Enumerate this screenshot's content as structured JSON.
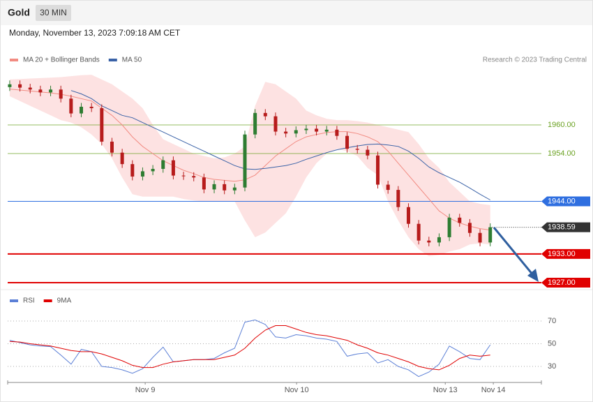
{
  "header": {
    "title": "Gold",
    "interval": "30 MIN",
    "timestamp": "Monday, November 13, 2023 7:09:18 AM CET"
  },
  "chart_data": [
    {
      "type": "candlestick",
      "source": "Research © 2023 Trading Central",
      "xlim": [
        -0.2,
        52
      ],
      "ylim": [
        1926,
        1972
      ],
      "candles": {
        "up_color": "#2e7d32",
        "down_color": "#b71c1c",
        "open": [
          1967.9,
          1968.5,
          1967.8,
          1967.4,
          1966.8,
          1967.4,
          1965.5,
          1962.4,
          1963.8,
          1963.5,
          1956.5,
          1954.2,
          1951.8,
          1949.2,
          1950.3,
          1950.8,
          1952.6,
          1949.4,
          1949.3,
          1949.0,
          1946.5,
          1947.6,
          1946.3,
          1946.9,
          1958.0,
          1962.5,
          1961.8,
          1958.6,
          1958.2,
          1958.9,
          1959.2,
          1958.6,
          1959.0,
          1957.7,
          1955.0,
          1954.8,
          1953.6,
          1947.5,
          1946.4,
          1942.8,
          1939.3,
          1935.8,
          1935.4,
          1936.5,
          1940.6,
          1939.5,
          1937.4,
          1935.4
        ],
        "high": [
          1969.3,
          1969.3,
          1968.6,
          1968.2,
          1968.2,
          1968.2,
          1966.3,
          1964.6,
          1964.6,
          1964.3,
          1957.3,
          1955.0,
          1952.6,
          1951.1,
          1951.6,
          1953.4,
          1953.4,
          1950.2,
          1950.1,
          1949.8,
          1948.4,
          1948.4,
          1947.7,
          1958.8,
          1963.3,
          1963.3,
          1962.6,
          1959.4,
          1959.7,
          1960.0,
          1960.0,
          1959.8,
          1959.8,
          1958.5,
          1955.8,
          1955.6,
          1954.4,
          1948.3,
          1947.2,
          1943.6,
          1940.1,
          1936.6,
          1937.3,
          1941.4,
          1941.4,
          1940.3,
          1938.2,
          1939.4
        ],
        "low": [
          1967.1,
          1967.0,
          1966.6,
          1966.0,
          1966.0,
          1964.7,
          1961.6,
          1961.6,
          1962.7,
          1955.7,
          1953.4,
          1951.0,
          1948.4,
          1948.4,
          1949.5,
          1950.0,
          1948.6,
          1948.5,
          1948.2,
          1945.7,
          1945.7,
          1945.5,
          1945.5,
          1946.1,
          1957.2,
          1961.0,
          1957.8,
          1957.4,
          1957.4,
          1958.1,
          1957.8,
          1957.8,
          1956.9,
          1954.2,
          1954.0,
          1952.8,
          1946.7,
          1945.6,
          1942.0,
          1938.5,
          1935.0,
          1934.6,
          1934.6,
          1935.7,
          1938.7,
          1936.6,
          1934.6,
          1934.6
        ],
        "close": [
          1968.5,
          1967.8,
          1967.4,
          1966.8,
          1967.4,
          1965.5,
          1962.4,
          1963.8,
          1963.5,
          1956.5,
          1954.2,
          1951.8,
          1949.2,
          1950.3,
          1950.8,
          1952.6,
          1949.4,
          1949.3,
          1949.0,
          1946.5,
          1947.6,
          1946.3,
          1946.9,
          1958.0,
          1962.5,
          1961.8,
          1958.6,
          1958.2,
          1958.9,
          1959.2,
          1958.6,
          1959.0,
          1957.7,
          1955.0,
          1954.8,
          1953.6,
          1947.5,
          1946.4,
          1942.8,
          1939.3,
          1935.8,
          1935.4,
          1936.5,
          1940.6,
          1939.5,
          1937.4,
          1935.4,
          1938.59
        ]
      },
      "series": [
        {
          "name": "MA 20 + Bollinger Bands",
          "color": "#f28b82",
          "band_color": "#fde2e2",
          "values": [
            1967.5,
            1967.3,
            1967.1,
            1966.9,
            1966.7,
            1966.4,
            1966,
            1965.5,
            1965,
            1963.5,
            1962,
            1960,
            1957.5,
            1955.5,
            1954,
            1952.5,
            1951.5,
            1950.5,
            1949.8,
            1949,
            1948.6,
            1948.4,
            1948.2,
            1948.5,
            1949.5,
            1951.5,
            1953.5,
            1955,
            1956.5,
            1957.5,
            1958,
            1958.4,
            1958.6,
            1958.6,
            1958.2,
            1957.5,
            1956.5,
            1954.5,
            1952,
            1949.5,
            1947,
            1944.5,
            1942,
            1940.5,
            1939.5,
            1938.8,
            1938.3,
            1938
          ],
          "upper": [
            1969.5,
            1969.6,
            1969.7,
            1969.8,
            1969.9,
            1970,
            1970.2,
            1970.4,
            1970.5,
            1969.5,
            1968.5,
            1967,
            1965.5,
            1963.5,
            1960,
            1957,
            1956,
            1955,
            1954,
            1953.5,
            1953,
            1953.2,
            1954,
            1955.5,
            1964,
            1969,
            1968.5,
            1967,
            1965.5,
            1963,
            1962,
            1961.3,
            1961,
            1961,
            1960.8,
            1960.5,
            1960,
            1959.5,
            1959,
            1958.5,
            1956,
            1953,
            1951,
            1948,
            1946,
            1944,
            1943.5,
            1943.2
          ],
          "lower": [
            1966,
            1965,
            1964,
            1963,
            1962,
            1961,
            1960.5,
            1959.5,
            1958,
            1956,
            1953,
            1949,
            1945.5,
            1945,
            1945,
            1945,
            1945,
            1944.5,
            1944.2,
            1944,
            1944,
            1944,
            1944,
            1940,
            1936.5,
            1937.5,
            1939.5,
            1941.5,
            1945,
            1949,
            1952,
            1954,
            1955,
            1954.5,
            1953.5,
            1951,
            1949.5,
            1944,
            1940,
            1936.5,
            1934,
            1932.5,
            1932.8,
            1933.5,
            1934,
            1935,
            1935.2,
            1935
          ]
        },
        {
          "name": "MA 50",
          "color": "#3a62a7",
          "values": [
            null,
            null,
            null,
            null,
            null,
            null,
            1967.2,
            1966.5,
            1965.5,
            1964,
            1963,
            1962,
            1961.5,
            1960.5,
            1959.5,
            1958.5,
            1957.5,
            1956.5,
            1955.5,
            1954.5,
            1953.5,
            1952.5,
            1951.5,
            1950.8,
            1950.7,
            1950.9,
            1951.2,
            1951.5,
            1952,
            1952.8,
            1953.5,
            1954.2,
            1954.8,
            1955.2,
            1955.6,
            1955.9,
            1956,
            1955.8,
            1955.5,
            1954.5,
            1953,
            1951.2,
            1950,
            1949,
            1948,
            1946.8,
            1945.5,
            1944.3
          ]
        }
      ],
      "levels": [
        {
          "value": 1960,
          "label": "1960.00",
          "color": "#6aa121",
          "box": false,
          "solid": true
        },
        {
          "value": 1954,
          "label": "1954.00",
          "color": "#6aa121",
          "box": false,
          "solid": true
        },
        {
          "value": 1944,
          "label": "1944.00",
          "color": "#2f6fe0",
          "box": true,
          "solid": true
        },
        {
          "value": 1938.59,
          "label": "1938.59",
          "color": "#333333",
          "box": true,
          "solid": false
        },
        {
          "value": 1933,
          "label": "1933.00",
          "color": "#e00000",
          "box": true,
          "solid": true
        },
        {
          "value": 1927,
          "label": "1927.00",
          "color": "#e00000",
          "box": true,
          "solid": true
        }
      ]
    },
    {
      "type": "line",
      "xlim": [
        -0.2,
        52
      ],
      "xticks": [
        {
          "value": 13.25,
          "label": "Nov 9"
        },
        {
          "value": 28.06,
          "label": "Nov 10"
        },
        {
          "value": 42.6,
          "label": "Nov 13"
        },
        {
          "value": 47.3,
          "label": "Nov 14"
        }
      ],
      "ylim": [
        16,
        82
      ],
      "yticks": [
        70,
        50,
        30
      ],
      "grid": true,
      "series": [
        {
          "name": "RSI",
          "color": "#5b7fd6",
          "values": [
            53,
            51,
            49,
            48,
            47.5,
            40,
            32,
            45,
            43,
            30,
            29,
            27,
            24,
            28,
            38,
            47,
            34,
            35,
            36,
            36,
            37,
            42,
            46,
            69,
            71,
            67,
            56,
            55,
            58,
            57,
            55,
            54,
            52,
            39,
            41,
            42,
            33,
            36,
            30,
            27,
            21,
            25,
            32,
            48,
            43,
            37,
            36,
            49
          ]
        },
        {
          "name": "9MA",
          "color": "#e00000",
          "values": [
            52,
            51.5,
            50,
            49,
            48,
            46,
            44,
            43,
            43,
            41,
            38,
            35,
            31,
            29,
            29,
            32,
            34,
            35,
            36,
            36,
            36,
            38,
            40,
            46,
            55,
            62,
            66,
            66,
            63,
            60,
            58,
            57,
            55,
            53,
            49,
            46,
            42,
            40,
            37,
            34,
            30,
            28,
            27,
            31,
            37,
            40,
            39,
            40
          ]
        }
      ]
    }
  ]
}
